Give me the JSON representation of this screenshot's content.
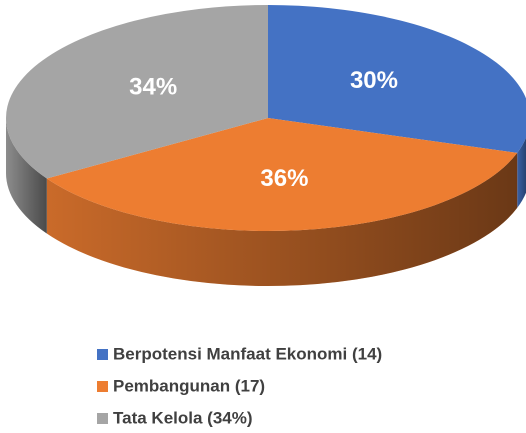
{
  "chart_data": {
    "type": "pie3d",
    "categories": [
      "Berpotensi Manfaat Ekonomi (14)",
      "Pembangunan (17)",
      "Tata Kelola (34%)"
    ],
    "values": [
      30,
      36,
      34
    ],
    "value_labels": [
      "30%",
      "36%",
      "34%"
    ],
    "colors": [
      "#4472c4",
      "#ed7d31",
      "#a5a5a5"
    ]
  }
}
